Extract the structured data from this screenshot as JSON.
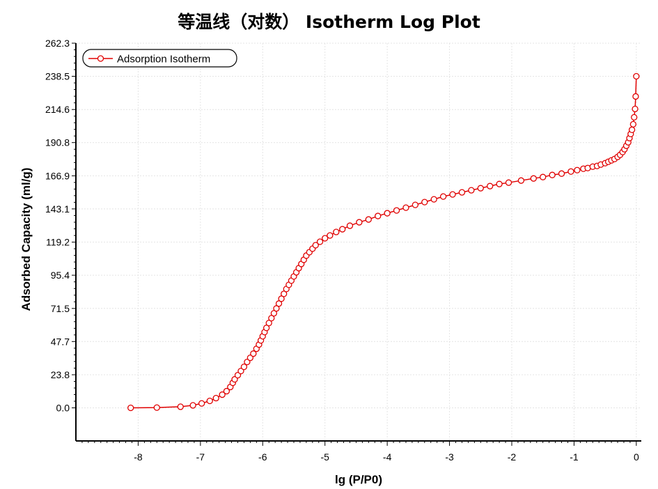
{
  "chart_data": {
    "type": "line",
    "title": "等温线（对数） Isotherm Log Plot",
    "xlabel": "lg (P/P0)",
    "ylabel": "Adsorbed Capacity (ml/g)",
    "xlim": [
      -9,
      0.08
    ],
    "ylim": [
      -23.8,
      262.3
    ],
    "x_ticks": [
      "-8",
      "-7",
      "-6",
      "-5",
      "-4",
      "-3",
      "-2",
      "-1",
      "0"
    ],
    "y_ticks": [
      "0.0",
      "23.8",
      "47.7",
      "71.5",
      "95.4",
      "119.2",
      "143.1",
      "166.9",
      "190.8",
      "214.6",
      "238.5",
      "262.3"
    ],
    "grid": true,
    "legend_position": "top-left",
    "series": [
      {
        "name": "Adsorption Isotherm",
        "color": "#e00000",
        "marker": "circle",
        "points": [
          [
            -8.12,
            0.0
          ],
          [
            -7.7,
            0.2
          ],
          [
            -7.32,
            0.8
          ],
          [
            -7.12,
            1.8
          ],
          [
            -6.98,
            3.2
          ],
          [
            -6.85,
            5.0
          ],
          [
            -6.75,
            7.0
          ],
          [
            -6.65,
            9.5
          ],
          [
            -6.58,
            12.0
          ],
          [
            -6.52,
            15.0
          ],
          [
            -6.48,
            18.0
          ],
          [
            -6.45,
            20.5
          ],
          [
            -6.4,
            23.5
          ],
          [
            -6.35,
            26.5
          ],
          [
            -6.3,
            29.5
          ],
          [
            -6.25,
            33.0
          ],
          [
            -6.2,
            36.0
          ],
          [
            -6.15,
            39.0
          ],
          [
            -6.1,
            42.5
          ],
          [
            -6.06,
            45.5
          ],
          [
            -6.03,
            48.5
          ],
          [
            -6.0,
            51.5
          ],
          [
            -5.97,
            54.5
          ],
          [
            -5.94,
            57.5
          ],
          [
            -5.9,
            61.0
          ],
          [
            -5.86,
            64.5
          ],
          [
            -5.82,
            68.0
          ],
          [
            -5.78,
            71.5
          ],
          [
            -5.74,
            75.0
          ],
          [
            -5.7,
            78.5
          ],
          [
            -5.66,
            82.0
          ],
          [
            -5.62,
            85.5
          ],
          [
            -5.58,
            88.5
          ],
          [
            -5.54,
            91.5
          ],
          [
            -5.5,
            94.5
          ],
          [
            -5.46,
            97.5
          ],
          [
            -5.42,
            100.5
          ],
          [
            -5.38,
            103.5
          ],
          [
            -5.34,
            106.5
          ],
          [
            -5.3,
            109.5
          ],
          [
            -5.25,
            112.0
          ],
          [
            -5.2,
            114.5
          ],
          [
            -5.15,
            117.0
          ],
          [
            -5.08,
            119.5
          ],
          [
            -5.0,
            122.0
          ],
          [
            -4.92,
            124.0
          ],
          [
            -4.82,
            126.5
          ],
          [
            -4.72,
            128.5
          ],
          [
            -4.6,
            131.0
          ],
          [
            -4.45,
            133.5
          ],
          [
            -4.3,
            135.5
          ],
          [
            -4.15,
            138.0
          ],
          [
            -4.0,
            140.0
          ],
          [
            -3.85,
            142.0
          ],
          [
            -3.7,
            144.0
          ],
          [
            -3.55,
            146.0
          ],
          [
            -3.4,
            148.0
          ],
          [
            -3.25,
            150.0
          ],
          [
            -3.1,
            152.0
          ],
          [
            -2.95,
            153.5
          ],
          [
            -2.8,
            155.0
          ],
          [
            -2.65,
            156.5
          ],
          [
            -2.5,
            158.0
          ],
          [
            -2.35,
            159.5
          ],
          [
            -2.2,
            161.0
          ],
          [
            -2.05,
            162.0
          ],
          [
            -1.85,
            163.5
          ],
          [
            -1.65,
            165.0
          ],
          [
            -1.5,
            166.0
          ],
          [
            -1.35,
            167.5
          ],
          [
            -1.2,
            168.5
          ],
          [
            -1.05,
            170.0
          ],
          [
            -0.95,
            171.0
          ],
          [
            -0.85,
            172.0
          ],
          [
            -0.78,
            172.5
          ],
          [
            -0.7,
            173.5
          ],
          [
            -0.63,
            174.0
          ],
          [
            -0.57,
            175.0
          ],
          [
            -0.5,
            176.0
          ],
          [
            -0.45,
            177.0
          ],
          [
            -0.4,
            178.0
          ],
          [
            -0.35,
            179.0
          ],
          [
            -0.3,
            180.5
          ],
          [
            -0.26,
            182.0
          ],
          [
            -0.22,
            184.0
          ],
          [
            -0.19,
            186.0
          ],
          [
            -0.16,
            188.5
          ],
          [
            -0.13,
            191.0
          ],
          [
            -0.11,
            194.0
          ],
          [
            -0.09,
            197.0
          ],
          [
            -0.07,
            200.0
          ],
          [
            -0.05,
            204.0
          ],
          [
            -0.035,
            209.0
          ],
          [
            -0.02,
            215.0
          ],
          [
            -0.01,
            224.0
          ],
          [
            0.0,
            238.5
          ]
        ]
      }
    ]
  }
}
